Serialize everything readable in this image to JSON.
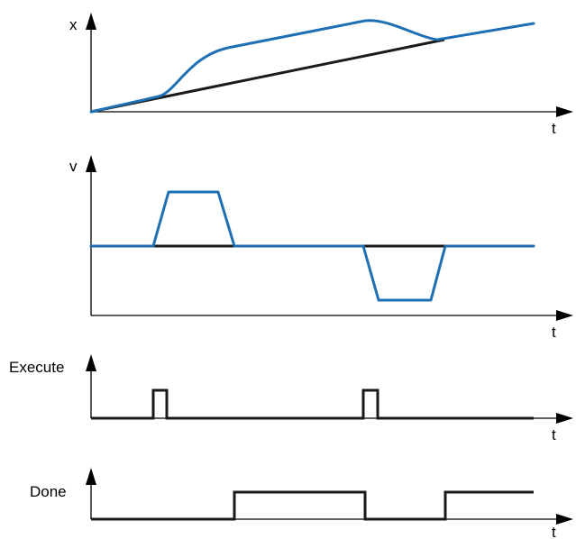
{
  "colors": {
    "actual": "#1f6fb4",
    "reference": "#1a1a1a",
    "axis": "#000000"
  },
  "panels": [
    {
      "id": "position",
      "y_label": "x",
      "x_label": "t"
    },
    {
      "id": "velocity",
      "y_label": "v",
      "x_label": "t"
    },
    {
      "id": "execute",
      "y_label": "Execute",
      "x_label": "t"
    },
    {
      "id": "done",
      "y_label": "Done",
      "x_label": "t"
    }
  ]
}
